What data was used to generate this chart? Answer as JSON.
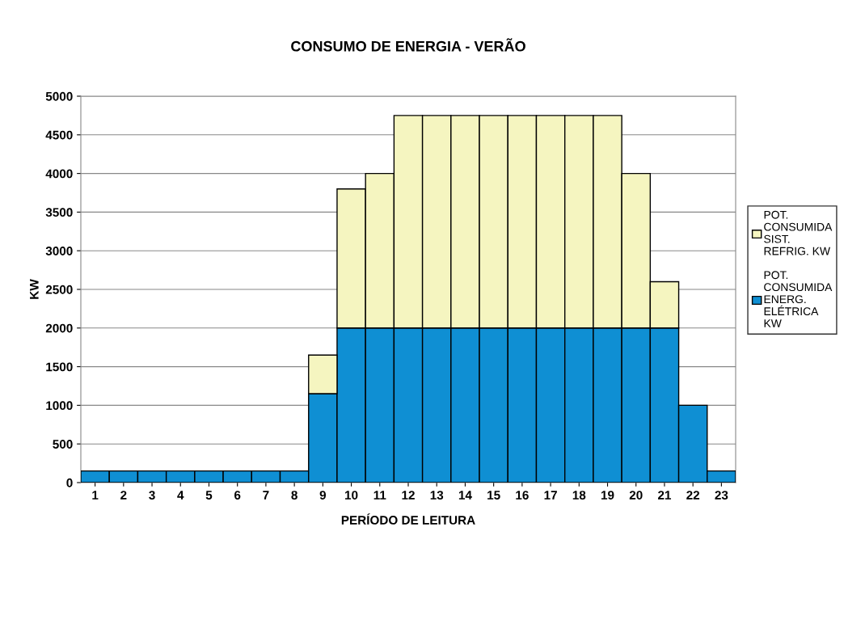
{
  "chart_data": {
    "type": "bar",
    "stacked": true,
    "title": "CONSUMO DE ENERGIA - VERÃO",
    "xlabel": "PERÍODO DE LEITURA",
    "ylabel": "KW",
    "categories": [
      "1",
      "2",
      "3",
      "4",
      "5",
      "6",
      "7",
      "8",
      "9",
      "10",
      "11",
      "12",
      "13",
      "14",
      "15",
      "16",
      "17",
      "18",
      "19",
      "20",
      "21",
      "22",
      "23"
    ],
    "series": [
      {
        "name": "POT.\nCONSUMIDA\nENERG.\nELÉTRICA\nKW",
        "color": "#0f8fd3",
        "values": [
          150,
          150,
          150,
          150,
          150,
          150,
          150,
          150,
          1150,
          2000,
          2000,
          2000,
          2000,
          2000,
          2000,
          2000,
          2000,
          2000,
          2000,
          2000,
          2000,
          1000,
          150
        ]
      },
      {
        "name": "POT.\nCONSUMIDA\nSIST.\nREFRIG. KW",
        "color": "#f5f5c0",
        "values": [
          null,
          null,
          null,
          null,
          null,
          null,
          null,
          null,
          500,
          1800,
          2000,
          2750,
          2750,
          2750,
          2750,
          2750,
          2750,
          2750,
          2750,
          2000,
          600,
          null,
          null
        ]
      }
    ],
    "ylim": [
      0,
      5000
    ],
    "yticks": [
      0,
      500,
      1000,
      1500,
      2000,
      2500,
      3000,
      3500,
      4000,
      4500,
      5000
    ],
    "grid": "y",
    "legend": "right"
  }
}
